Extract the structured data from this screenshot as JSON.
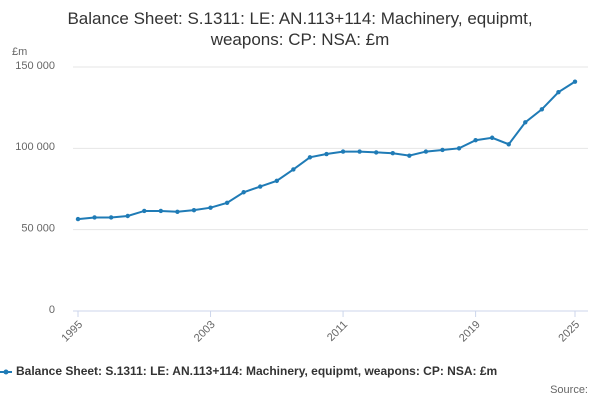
{
  "chart_data": {
    "type": "line",
    "title": "Balance Sheet: S.1311: LE: AN.113+114: Machinery, equipmt, weapons: CP: NSA: £m",
    "y_label": "£m",
    "x": [
      1995,
      1996,
      1997,
      1998,
      1999,
      2000,
      2001,
      2002,
      2003,
      2004,
      2005,
      2006,
      2007,
      2008,
      2009,
      2010,
      2011,
      2012,
      2013,
      2014,
      2015,
      2016,
      2017,
      2018,
      2019,
      2020,
      2021,
      2022,
      2023,
      2024,
      2025
    ],
    "series": [
      {
        "name": "Balance Sheet: S.1311: LE: AN.113+114: Machinery, equipmt, weapons: CP: NSA: £m",
        "color": "#1f7bb6",
        "values": [
          56500,
          57500,
          57500,
          58400,
          61500,
          61500,
          61000,
          62000,
          63500,
          66500,
          73000,
          76500,
          80000,
          87000,
          94500,
          96500,
          98000,
          98000,
          97500,
          97000,
          95500,
          98000,
          99000,
          100000,
          105000,
          106500,
          102500,
          116000,
          124000,
          134500,
          141000
        ]
      }
    ],
    "xlim": [
      1995,
      2025
    ],
    "xticks": [
      1995,
      2003,
      2011,
      2019,
      2025
    ],
    "ylim": [
      0,
      150000
    ],
    "yticks": [
      0,
      {
        "value": 50000,
        "label": "50 000"
      },
      {
        "value": 100000,
        "label": "100 000"
      },
      {
        "value": 150000,
        "label": "150 000"
      }
    ],
    "grid": true,
    "source": "Source:"
  }
}
